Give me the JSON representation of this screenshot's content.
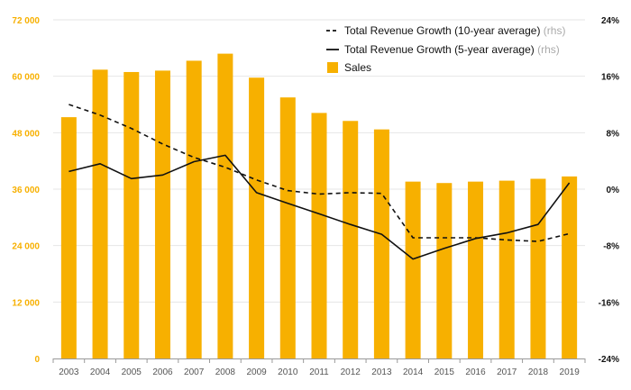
{
  "colors": {
    "bar": "#f7b000",
    "left_axis_text": "#f7b000",
    "line": "#111111",
    "grid": "#e6e6e6",
    "axis": "#999999"
  },
  "chart_data": {
    "type": "bar",
    "categories": [
      "2003",
      "2004",
      "2005",
      "2006",
      "2007",
      "2008",
      "2009",
      "2010",
      "2011",
      "2012",
      "2013",
      "2014",
      "2015",
      "2016",
      "2017",
      "2018",
      "2019"
    ],
    "series": [
      {
        "name": "Sales",
        "axis": "left",
        "type": "bar",
        "values": [
          51300,
          61400,
          60900,
          61200,
          63300,
          64800,
          59700,
          55500,
          52200,
          50500,
          48700,
          37600,
          37300,
          37600,
          37800,
          38200,
          38700
        ]
      },
      {
        "name": "Total Revenue Growth (10-year average)",
        "axis": "right",
        "type": "line",
        "style": "dashed",
        "values": [
          12.0,
          10.5,
          8.6,
          6.4,
          4.5,
          3.1,
          1.3,
          -0.2,
          -0.7,
          -0.5,
          -0.6,
          -6.9,
          -6.9,
          -6.9,
          -7.2,
          -7.4,
          -6.3
        ]
      },
      {
        "name": "Total Revenue Growth (5-year average)",
        "axis": "right",
        "type": "line",
        "style": "solid",
        "values": [
          2.5,
          3.6,
          1.5,
          2.0,
          3.9,
          4.8,
          -0.5,
          -2.0,
          -3.5,
          -5.0,
          -6.4,
          -9.9,
          -8.4,
          -7.0,
          -6.2,
          -5.0,
          0.9
        ]
      }
    ],
    "left_axis": {
      "ticks": [
        "0",
        "12 000",
        "24 000",
        "36 000",
        "48 000",
        "60 000",
        "72 000"
      ],
      "ylim": [
        0,
        72000
      ]
    },
    "right_axis": {
      "ticks": [
        "-24%",
        "-16%",
        "-8%",
        "0%",
        "8%",
        "16%",
        "24%"
      ],
      "ylim": [
        -24,
        24
      ]
    },
    "legend": {
      "position": "top-right",
      "entries": [
        {
          "label": "Total Revenue Growth (10-year average)",
          "unit": "(rhs)",
          "symbol": "dashed-line"
        },
        {
          "label": "Total Revenue Growth (5-year average)",
          "unit": "(rhs)",
          "symbol": "solid-line"
        },
        {
          "label": "Sales",
          "unit": "",
          "symbol": "bar-square"
        }
      ]
    },
    "grid": "horizontal"
  }
}
